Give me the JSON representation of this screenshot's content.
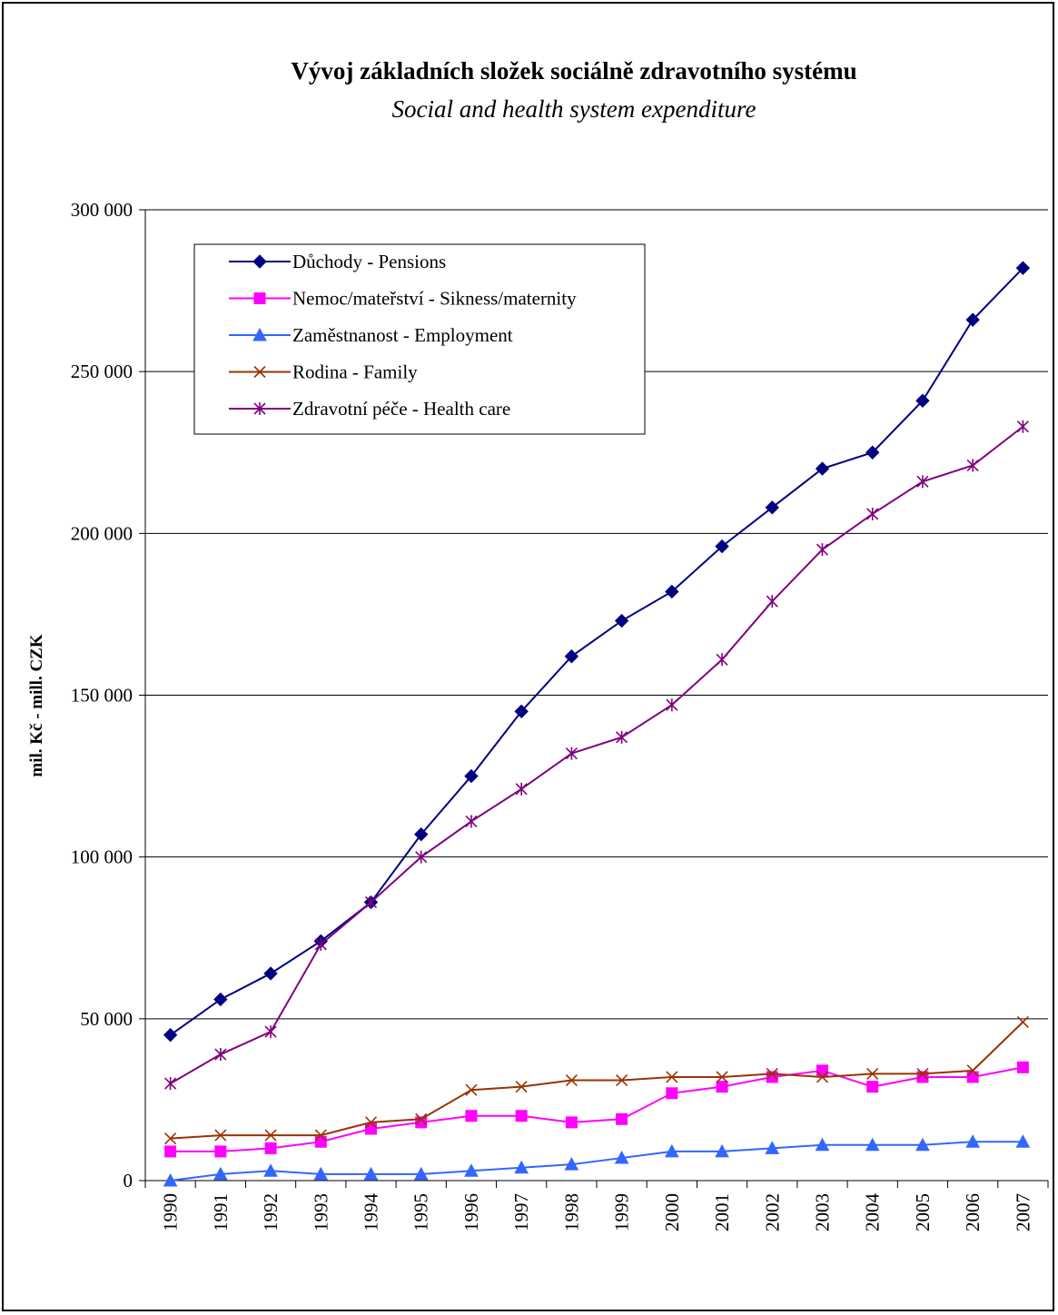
{
  "chart_data": {
    "type": "line",
    "title": "Vývoj základních složek sociálně zdravotního systému",
    "subtitle": "Social and health system expenditure",
    "xlabel": "",
    "ylabel": "mil. Kč - mill. CZK",
    "ylim": [
      0,
      300000
    ],
    "yticks": [
      0,
      50000,
      100000,
      150000,
      200000,
      250000,
      300000
    ],
    "ytick_labels": [
      "0",
      "50 000",
      "100 000",
      "150 000",
      "200 000",
      "250 000",
      "300 000"
    ],
    "grid": true,
    "legend_position": "top-left",
    "categories": [
      "1990",
      "1991",
      "1992",
      "1993",
      "1994",
      "1995",
      "1996",
      "1997",
      "1998",
      "1999",
      "2000",
      "2001",
      "2002",
      "2003",
      "2004",
      "2005",
      "2006",
      "2007"
    ],
    "series": [
      {
        "name": "Důchody - Pensions",
        "color": "#000080",
        "marker": "diamond",
        "values": [
          45000,
          56000,
          64000,
          74000,
          86000,
          107000,
          125000,
          145000,
          162000,
          173000,
          182000,
          196000,
          208000,
          220000,
          225000,
          241000,
          266000,
          282000
        ]
      },
      {
        "name": "Nemoc/mateřství - Sikness/maternity",
        "color": "#FF00FF",
        "marker": "square",
        "values": [
          9000,
          9000,
          10000,
          12000,
          16000,
          18000,
          20000,
          20000,
          18000,
          19000,
          27000,
          29000,
          32000,
          34000,
          29000,
          32000,
          32000,
          35000
        ]
      },
      {
        "name": "Zaměstnanost - Employment",
        "color": "#3366FF",
        "marker": "triangle",
        "values": [
          0,
          2000,
          3000,
          2000,
          2000,
          2000,
          3000,
          4000,
          5000,
          7000,
          9000,
          9000,
          10000,
          11000,
          11000,
          11000,
          12000,
          12000
        ]
      },
      {
        "name": "Rodina - Family",
        "color": "#993300",
        "marker": "x",
        "values": [
          13000,
          14000,
          14000,
          14000,
          18000,
          19000,
          28000,
          29000,
          31000,
          31000,
          32000,
          32000,
          33000,
          32000,
          33000,
          33000,
          34000,
          49000
        ]
      },
      {
        "name": "Zdravotní péče - Health care",
        "color": "#800080",
        "marker": "star",
        "values": [
          30000,
          39000,
          46000,
          73000,
          86000,
          100000,
          111000,
          121000,
          132000,
          137000,
          147000,
          161000,
          179000,
          195000,
          206000,
          216000,
          221000,
          233000
        ]
      }
    ]
  }
}
